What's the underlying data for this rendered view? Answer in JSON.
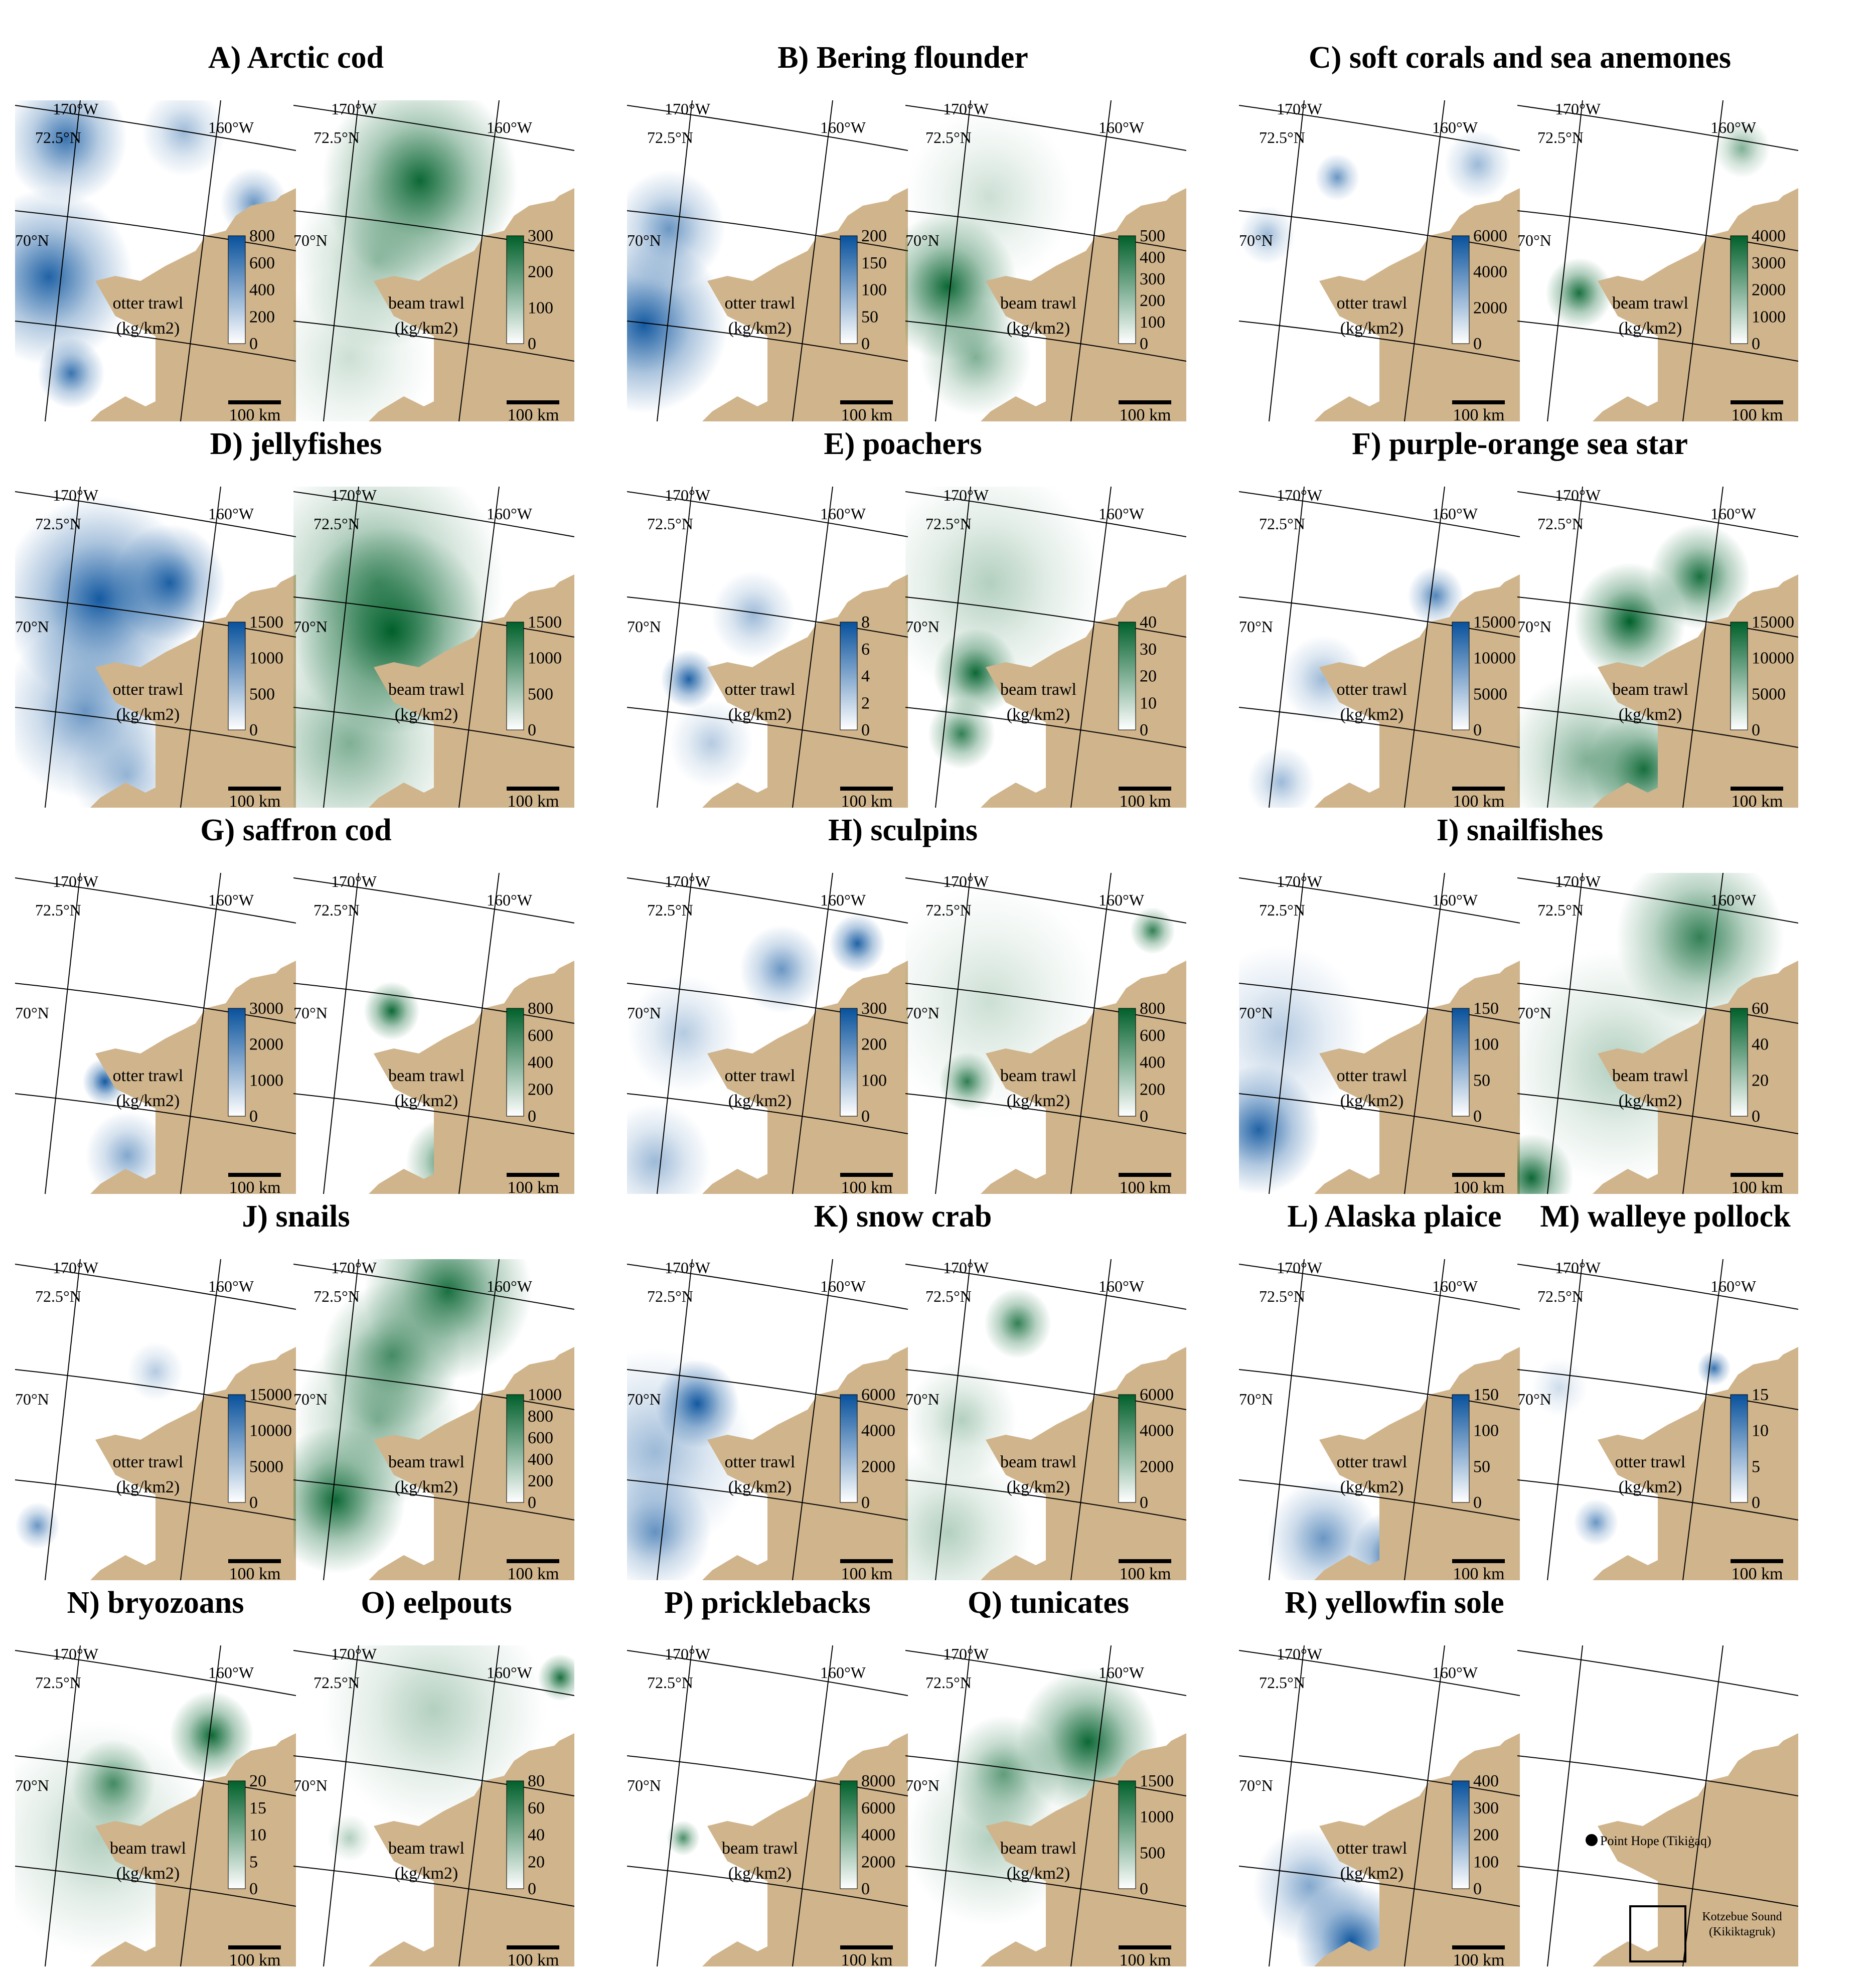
{
  "figure": {
    "titles": [
      "A) Arctic cod",
      "B) Bering flounder",
      "C) soft corals and sea anemones",
      "D) jellyfishes",
      "E) poachers",
      "F) purple-orange sea star",
      "G) saffron cod",
      "H) sculpins",
      "I) snailfishes",
      "J) snails",
      "K) snow crab",
      "L) Alaska plaice",
      "M) walleye pollock",
      "N) bryozoans",
      "O) eelpouts",
      "P) pricklebacks",
      "Q) tunicates",
      "R) yellowfin sole"
    ],
    "graticule": {
      "lon1": "170°W",
      "lon2": "160°W",
      "lat1": "72.5°N",
      "lat2": "70°N"
    },
    "scale_bar": "100 km",
    "unit": "(kg/km2)",
    "colors": {
      "land": "#cfb48c",
      "otter": "#08519c",
      "beam": "#00602b",
      "grid": "#000000"
    }
  },
  "maps": [
    {
      "id": "A-otter",
      "title": "A) Arctic cod",
      "trawl": "otter trawl",
      "ticks": [
        "800",
        "600",
        "400",
        "200",
        "0"
      ],
      "scheme": "otter",
      "hotspots": [
        [
          0.18,
          0.12,
          0.8,
          0.22
        ],
        [
          0.12,
          0.55,
          0.9,
          0.3
        ],
        [
          0.2,
          0.85,
          0.8,
          0.12
        ],
        [
          0.6,
          0.1,
          0.4,
          0.15
        ],
        [
          0.85,
          0.32,
          0.6,
          0.12
        ]
      ]
    },
    {
      "id": "A-beam",
      "title": "",
      "trawl": "beam trawl",
      "ticks": [
        "300",
        "200",
        "100",
        "0"
      ],
      "scheme": "beam",
      "hotspots": [
        [
          0.45,
          0.25,
          0.95,
          0.35
        ],
        [
          0.3,
          0.5,
          0.4,
          0.3
        ],
        [
          0.2,
          0.8,
          0.2,
          0.3
        ]
      ]
    },
    {
      "id": "B-otter",
      "title": "B) Bering flounder",
      "trawl": "otter trawl",
      "ticks": [
        "200",
        "150",
        "100",
        "50",
        "0"
      ],
      "scheme": "otter",
      "hotspots": [
        [
          0.06,
          0.7,
          0.95,
          0.3
        ],
        [
          0.15,
          0.4,
          0.6,
          0.2
        ]
      ]
    },
    {
      "id": "B-beam",
      "title": "",
      "trawl": "beam trawl",
      "ticks": [
        "500",
        "400",
        "300",
        "200",
        "100",
        "0"
      ],
      "scheme": "beam",
      "hotspots": [
        [
          0.15,
          0.58,
          0.95,
          0.25
        ],
        [
          0.25,
          0.8,
          0.5,
          0.2
        ],
        [
          0.3,
          0.3,
          0.2,
          0.3
        ]
      ]
    },
    {
      "id": "C-otter",
      "title": "C) soft corals and sea anemones",
      "trawl": "otter trawl",
      "ticks": [
        "6000",
        "4000",
        "2000",
        "0"
      ],
      "scheme": "otter",
      "hotspots": [
        [
          0.35,
          0.24,
          0.6,
          0.08
        ],
        [
          0.1,
          0.42,
          0.4,
          0.1
        ],
        [
          0.85,
          0.2,
          0.4,
          0.12
        ]
      ]
    },
    {
      "id": "C-beam",
      "title": "",
      "trawl": "beam trawl",
      "ticks": [
        "4000",
        "3000",
        "2000",
        "1000",
        "0"
      ],
      "scheme": "beam",
      "hotspots": [
        [
          0.22,
          0.6,
          0.9,
          0.12
        ],
        [
          0.8,
          0.15,
          0.5,
          0.1
        ]
      ]
    },
    {
      "id": "D-otter",
      "title": "D) jellyfishes",
      "trawl": "otter trawl",
      "ticks": [
        "1500",
        "1000",
        "500",
        "0"
      ],
      "scheme": "otter",
      "hotspots": [
        [
          0.3,
          0.35,
          0.95,
          0.35
        ],
        [
          0.55,
          0.3,
          0.9,
          0.2
        ],
        [
          0.25,
          0.7,
          0.6,
          0.3
        ],
        [
          0.4,
          0.9,
          0.4,
          0.2
        ]
      ]
    },
    {
      "id": "D-beam",
      "title": "",
      "trawl": "beam trawl",
      "ticks": [
        "1500",
        "1000",
        "500",
        "0"
      ],
      "scheme": "beam",
      "hotspots": [
        [
          0.35,
          0.45,
          1.0,
          0.35
        ],
        [
          0.3,
          0.3,
          0.6,
          0.45
        ],
        [
          0.2,
          0.8,
          0.5,
          0.4
        ]
      ]
    },
    {
      "id": "E-otter",
      "title": "E) poachers",
      "trawl": "otter trawl",
      "ticks": [
        "8",
        "6",
        "4",
        "2",
        "0"
      ],
      "scheme": "otter",
      "hotspots": [
        [
          0.22,
          0.6,
          0.9,
          0.1
        ],
        [
          0.45,
          0.4,
          0.4,
          0.15
        ],
        [
          0.3,
          0.8,
          0.3,
          0.15
        ]
      ]
    },
    {
      "id": "E-beam",
      "title": "",
      "trawl": "beam trawl",
      "ticks": [
        "40",
        "30",
        "20",
        "10",
        "0"
      ],
      "scheme": "beam",
      "hotspots": [
        [
          0.25,
          0.58,
          0.95,
          0.15
        ],
        [
          0.2,
          0.77,
          0.8,
          0.12
        ],
        [
          0.3,
          0.3,
          0.3,
          0.4
        ]
      ]
    },
    {
      "id": "F-otter",
      "title": "F) purple-orange sea star",
      "trawl": "otter trawl",
      "ticks": [
        "15000",
        "10000",
        "5000",
        "0"
      ],
      "scheme": "otter",
      "hotspots": [
        [
          0.7,
          0.34,
          0.7,
          0.1
        ],
        [
          0.3,
          0.6,
          0.4,
          0.15
        ],
        [
          0.15,
          0.92,
          0.4,
          0.12
        ]
      ]
    },
    {
      "id": "F-beam",
      "title": "",
      "trawl": "beam trawl",
      "ticks": [
        "15000",
        "10000",
        "5000",
        "0"
      ],
      "scheme": "beam",
      "hotspots": [
        [
          0.4,
          0.42,
          1.0,
          0.2
        ],
        [
          0.65,
          0.28,
          0.9,
          0.18
        ],
        [
          0.45,
          0.88,
          0.9,
          0.2
        ],
        [
          0.25,
          0.85,
          0.5,
          0.3
        ]
      ]
    },
    {
      "id": "G-otter",
      "title": "G) saffron cod",
      "trawl": "otter trawl",
      "ticks": [
        "3000",
        "2000",
        "1000",
        "0"
      ],
      "scheme": "otter",
      "hotspots": [
        [
          0.32,
          0.65,
          0.95,
          0.08
        ],
        [
          0.4,
          0.88,
          0.5,
          0.15
        ]
      ]
    },
    {
      "id": "G-beam",
      "title": "",
      "trawl": "beam trawl",
      "ticks": [
        "800",
        "600",
        "400",
        "200",
        "0"
      ],
      "scheme": "beam",
      "hotspots": [
        [
          0.35,
          0.43,
          0.95,
          0.1
        ],
        [
          0.55,
          0.9,
          0.8,
          0.15
        ]
      ]
    },
    {
      "id": "H-otter",
      "title": "H) sculpins",
      "trawl": "otter trawl",
      "ticks": [
        "300",
        "200",
        "100",
        "0"
      ],
      "scheme": "otter",
      "hotspots": [
        [
          0.82,
          0.22,
          0.9,
          0.1
        ],
        [
          0.55,
          0.3,
          0.6,
          0.15
        ],
        [
          0.2,
          0.5,
          0.3,
          0.2
        ],
        [
          0.1,
          0.9,
          0.4,
          0.2
        ]
      ]
    },
    {
      "id": "H-beam",
      "title": "",
      "trawl": "beam trawl",
      "ticks": [
        "800",
        "600",
        "400",
        "200",
        "0"
      ],
      "scheme": "beam",
      "hotspots": [
        [
          0.88,
          0.18,
          0.8,
          0.08
        ],
        [
          0.22,
          0.65,
          0.8,
          0.1
        ],
        [
          0.3,
          0.4,
          0.2,
          0.4
        ]
      ]
    },
    {
      "id": "I-otter",
      "title": "I) snailfishes",
      "trawl": "otter trawl",
      "ticks": [
        "150",
        "100",
        "50",
        "0"
      ],
      "scheme": "otter",
      "hotspots": [
        [
          0.07,
          0.8,
          0.9,
          0.22
        ],
        [
          0.15,
          0.5,
          0.3,
          0.3
        ]
      ]
    },
    {
      "id": "I-beam",
      "title": "",
      "trawl": "beam trawl",
      "ticks": [
        "60",
        "40",
        "20",
        "0"
      ],
      "scheme": "beam",
      "hotspots": [
        [
          0.65,
          0.2,
          0.8,
          0.3
        ],
        [
          0.05,
          0.95,
          0.95,
          0.15
        ],
        [
          0.35,
          0.6,
          0.3,
          0.4
        ]
      ]
    },
    {
      "id": "J-otter",
      "title": "J) snails",
      "trawl": "otter trawl",
      "ticks": [
        "15000",
        "10000",
        "5000",
        "0"
      ],
      "scheme": "otter",
      "hotspots": [
        [
          0.08,
          0.83,
          0.6,
          0.08
        ],
        [
          0.5,
          0.35,
          0.3,
          0.1
        ]
      ]
    },
    {
      "id": "J-beam",
      "title": "",
      "trawl": "beam trawl",
      "ticks": [
        "1000",
        "800",
        "600",
        "400",
        "200",
        "0"
      ],
      "scheme": "beam",
      "hotspots": [
        [
          0.55,
          0.1,
          0.9,
          0.3
        ],
        [
          0.35,
          0.3,
          0.7,
          0.25
        ],
        [
          0.15,
          0.75,
          0.95,
          0.25
        ],
        [
          0.3,
          0.5,
          0.5,
          0.3
        ]
      ]
    },
    {
      "id": "K-otter",
      "title": "K) snow crab",
      "trawl": "otter trawl",
      "ticks": [
        "6000",
        "4000",
        "2000",
        "0"
      ],
      "scheme": "otter",
      "hotspots": [
        [
          0.25,
          0.45,
          0.95,
          0.15
        ],
        [
          0.1,
          0.85,
          0.6,
          0.2
        ],
        [
          0.1,
          0.6,
          0.4,
          0.35
        ]
      ]
    },
    {
      "id": "K-beam",
      "title": "",
      "trawl": "beam trawl",
      "ticks": [
        "6000",
        "4000",
        "2000",
        "0"
      ],
      "scheme": "beam",
      "hotspots": [
        [
          0.4,
          0.2,
          0.8,
          0.12
        ],
        [
          0.2,
          0.5,
          0.3,
          0.2
        ],
        [
          0.15,
          0.85,
          0.3,
          0.3
        ]
      ]
    },
    {
      "id": "L-otter",
      "title": "L) Alaska plaice",
      "trawl": "otter trawl",
      "ticks": [
        "150",
        "100",
        "50",
        "0"
      ],
      "scheme": "otter",
      "hotspots": [
        [
          0.55,
          0.92,
          0.95,
          0.15
        ],
        [
          0.3,
          0.87,
          0.6,
          0.2
        ]
      ]
    },
    {
      "id": "M-otter",
      "title": "M) walleye pollock",
      "trawl": "otter trawl",
      "ticks": [
        "15",
        "10",
        "5",
        "0"
      ],
      "scheme": "otter",
      "hotspots": [
        [
          0.7,
          0.34,
          0.8,
          0.06
        ],
        [
          0.28,
          0.82,
          0.6,
          0.08
        ],
        [
          0.15,
          0.4,
          0.2,
          0.1
        ]
      ]
    },
    {
      "id": "N-beam",
      "title": "N) bryozoans",
      "trawl": "beam trawl",
      "ticks": [
        "20",
        "15",
        "10",
        "5",
        "0"
      ],
      "scheme": "beam",
      "hotspots": [
        [
          0.7,
          0.28,
          0.95,
          0.15
        ],
        [
          0.35,
          0.43,
          0.7,
          0.15
        ],
        [
          0.3,
          0.6,
          0.3,
          0.4
        ]
      ]
    },
    {
      "id": "O-beam",
      "title": "O) eelpouts",
      "trawl": "beam trawl",
      "ticks": [
        "80",
        "60",
        "40",
        "20",
        "0"
      ],
      "scheme": "beam",
      "hotspots": [
        [
          0.95,
          0.1,
          0.9,
          0.08
        ],
        [
          0.2,
          0.6,
          0.3,
          0.08
        ],
        [
          0.5,
          0.2,
          0.3,
          0.4
        ]
      ]
    },
    {
      "id": "P-beam",
      "title": "P) pricklebacks",
      "trawl": "beam trawl",
      "ticks": [
        "8000",
        "6000",
        "4000",
        "2000",
        "0"
      ],
      "scheme": "beam",
      "hotspots": [
        [
          0.2,
          0.6,
          0.7,
          0.06
        ]
      ]
    },
    {
      "id": "Q-beam",
      "title": "Q) tunicates",
      "trawl": "beam trawl",
      "ticks": [
        "1500",
        "1000",
        "500",
        "0"
      ],
      "scheme": "beam",
      "hotspots": [
        [
          0.65,
          0.3,
          0.95,
          0.25
        ],
        [
          0.35,
          0.4,
          0.6,
          0.2
        ],
        [
          0.3,
          0.6,
          0.3,
          0.3
        ]
      ]
    },
    {
      "id": "R-otter",
      "title": "R) yellowfin sole",
      "trawl": "otter trawl",
      "ticks": [
        "400",
        "300",
        "200",
        "100",
        "0"
      ],
      "scheme": "otter",
      "hotspots": [
        [
          0.4,
          0.92,
          0.95,
          0.2
        ],
        [
          0.25,
          0.75,
          0.5,
          0.2
        ]
      ]
    }
  ],
  "reference_map": {
    "point_label": "Point Hope (Tikiġaq)",
    "box_label_line1": "Kotzebue Sound",
    "box_label_line2": "(Kikiktagruk)"
  }
}
